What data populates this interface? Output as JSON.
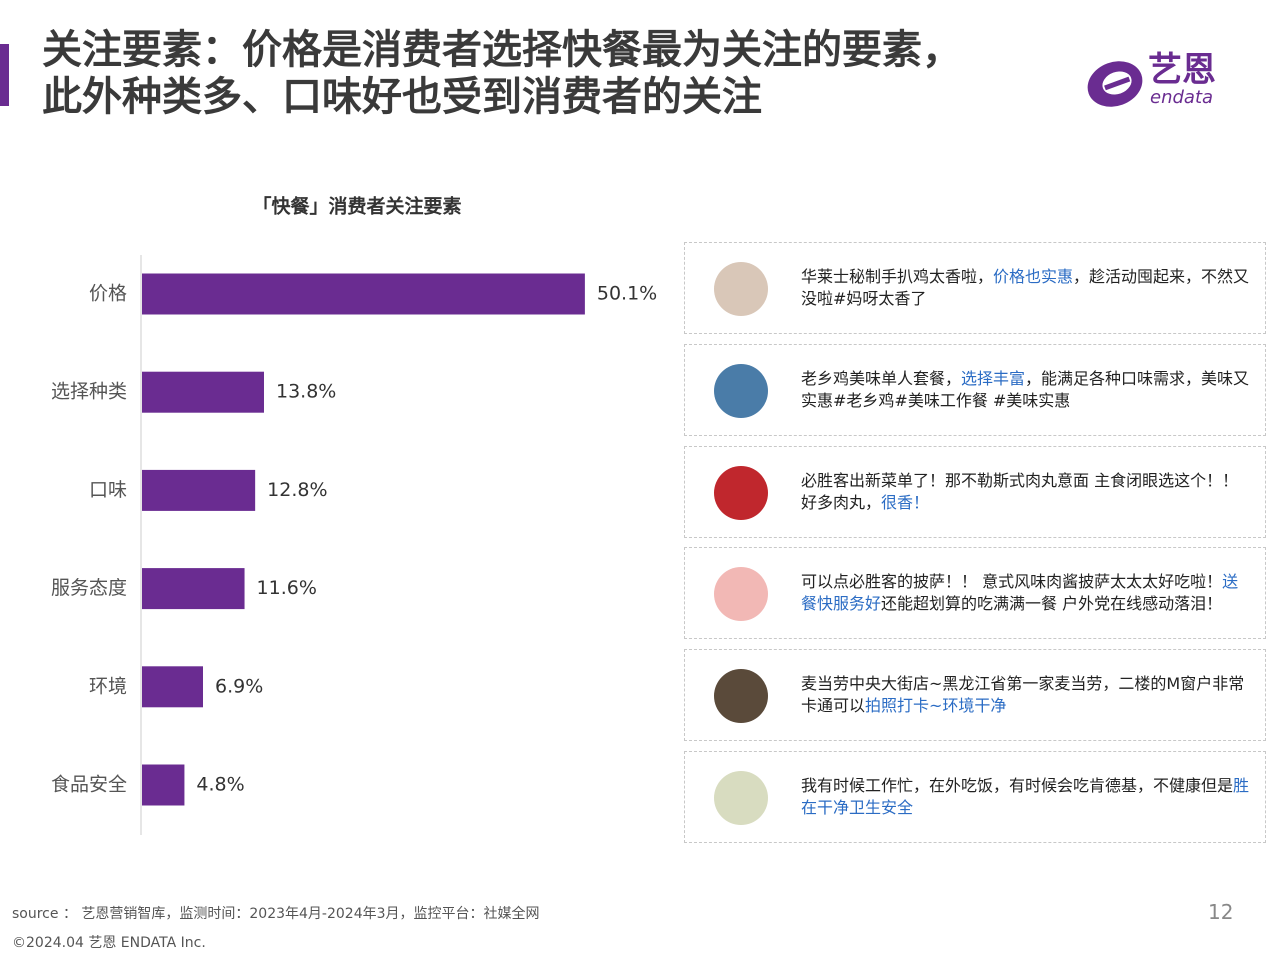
{
  "header": {
    "title_lines": [
      "关注要素：价格是消费者选择快餐最为关注的要素，",
      "此外种类多、口味好也受到消费者的关注"
    ]
  },
  "logo": {
    "cn": "艺恩",
    "en": "endata"
  },
  "chart_data": {
    "type": "bar",
    "orientation": "horizontal",
    "title": "「快餐」消费者关注要素",
    "categories": [
      "价格",
      "选择种类",
      "口味",
      "服务态度",
      "环境",
      "食品安全"
    ],
    "values": [
      50.1,
      13.8,
      12.8,
      11.6,
      6.9,
      4.8
    ],
    "value_labels": [
      "50.1%",
      "13.8%",
      "12.8%",
      "11.6%",
      "6.9%",
      "4.8%"
    ],
    "color": "#6a2c91"
  },
  "comments": [
    {
      "avatar_color": "#d9c7b8",
      "segments": [
        {
          "text": "华莱士秘制手扒鸡太香啦，",
          "highlight": false
        },
        {
          "text": "价格也实惠",
          "highlight": true
        },
        {
          "text": "，趁活动囤起来，不然又没啦#妈呀太香了",
          "highlight": false
        }
      ]
    },
    {
      "avatar_color": "#4a7ca8",
      "segments": [
        {
          "text": "老乡鸡美味单人套餐，",
          "highlight": false
        },
        {
          "text": "选择丰富",
          "highlight": true
        },
        {
          "text": "，能满足各种口味需求，美味又实惠#老乡鸡#美味工作餐 #美味实惠",
          "highlight": false
        }
      ]
    },
    {
      "avatar_color": "#c0272d",
      "segments": [
        {
          "text": "必胜客出新菜单了！那不勒斯式肉丸意面 主食闭眼选这个！！好多肉丸，",
          "highlight": false
        },
        {
          "text": "很香！",
          "highlight": true
        }
      ]
    },
    {
      "avatar_color": "#f2b8b5",
      "segments": [
        {
          "text": "可以点必胜客的披萨！！ 意式风味肉酱披萨太太太好吃啦！",
          "highlight": false
        },
        {
          "text": "送餐快服务好",
          "highlight": true
        },
        {
          "text": "还能超划算的吃满满一餐 户外党在线感动落泪！",
          "highlight": false
        }
      ]
    },
    {
      "avatar_color": "#5a4a3a",
      "segments": [
        {
          "text": "麦当劳中央大街店~黑龙江省第一家麦当劳，二楼的M窗户非常卡通可以",
          "highlight": false
        },
        {
          "text": "拍照打卡~环境干净",
          "highlight": true
        }
      ]
    },
    {
      "avatar_color": "#d8dcc0",
      "segments": [
        {
          "text": "我有时候工作忙，在外吃饭，有时候会吃肯德基，不健康但是",
          "highlight": false
        },
        {
          "text": "胜在干净卫生安全",
          "highlight": true
        }
      ]
    }
  ],
  "footer": {
    "source": "source ： 艺恩营销智库，监测时间：2023年4月-2024年3月，监控平台：社媒全网",
    "copyright": "©2024.04  艺恩 ENDATA Inc.",
    "page": "12"
  }
}
